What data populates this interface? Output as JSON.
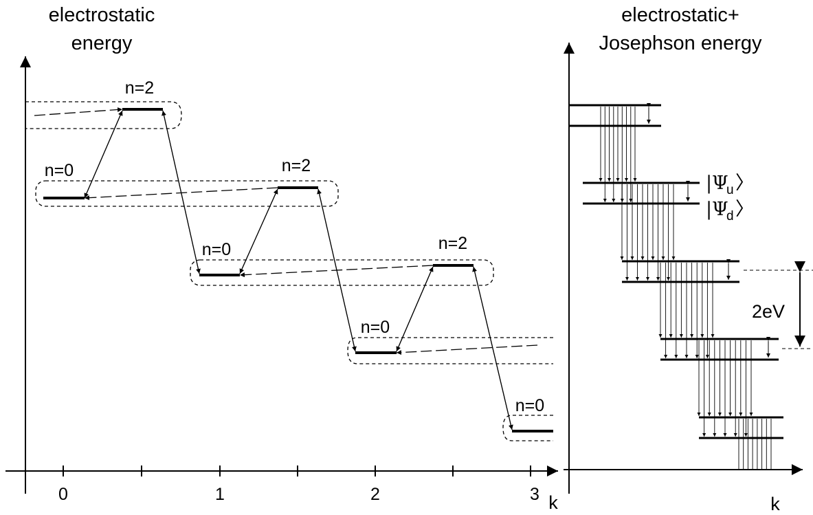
{
  "left_panel": {
    "title_line1": "electrostatic",
    "title_line2": "energy",
    "x_axis_label": "k",
    "tick_labels": [
      "0",
      "1",
      "2",
      "3"
    ],
    "state_labels": [
      "n=2",
      "n=0",
      "n=2",
      "n=0",
      "n=2",
      "n=0",
      "n=0"
    ]
  },
  "right_panel": {
    "title_line1": "electrostatic+",
    "title_line2": "Josephson energy",
    "x_axis_label": "k",
    "psi_upper": "Ψ",
    "psi_upper_sub": "u",
    "psi_lower": "Ψ",
    "psi_lower_sub": "d",
    "gap_label": "2eV"
  }
}
